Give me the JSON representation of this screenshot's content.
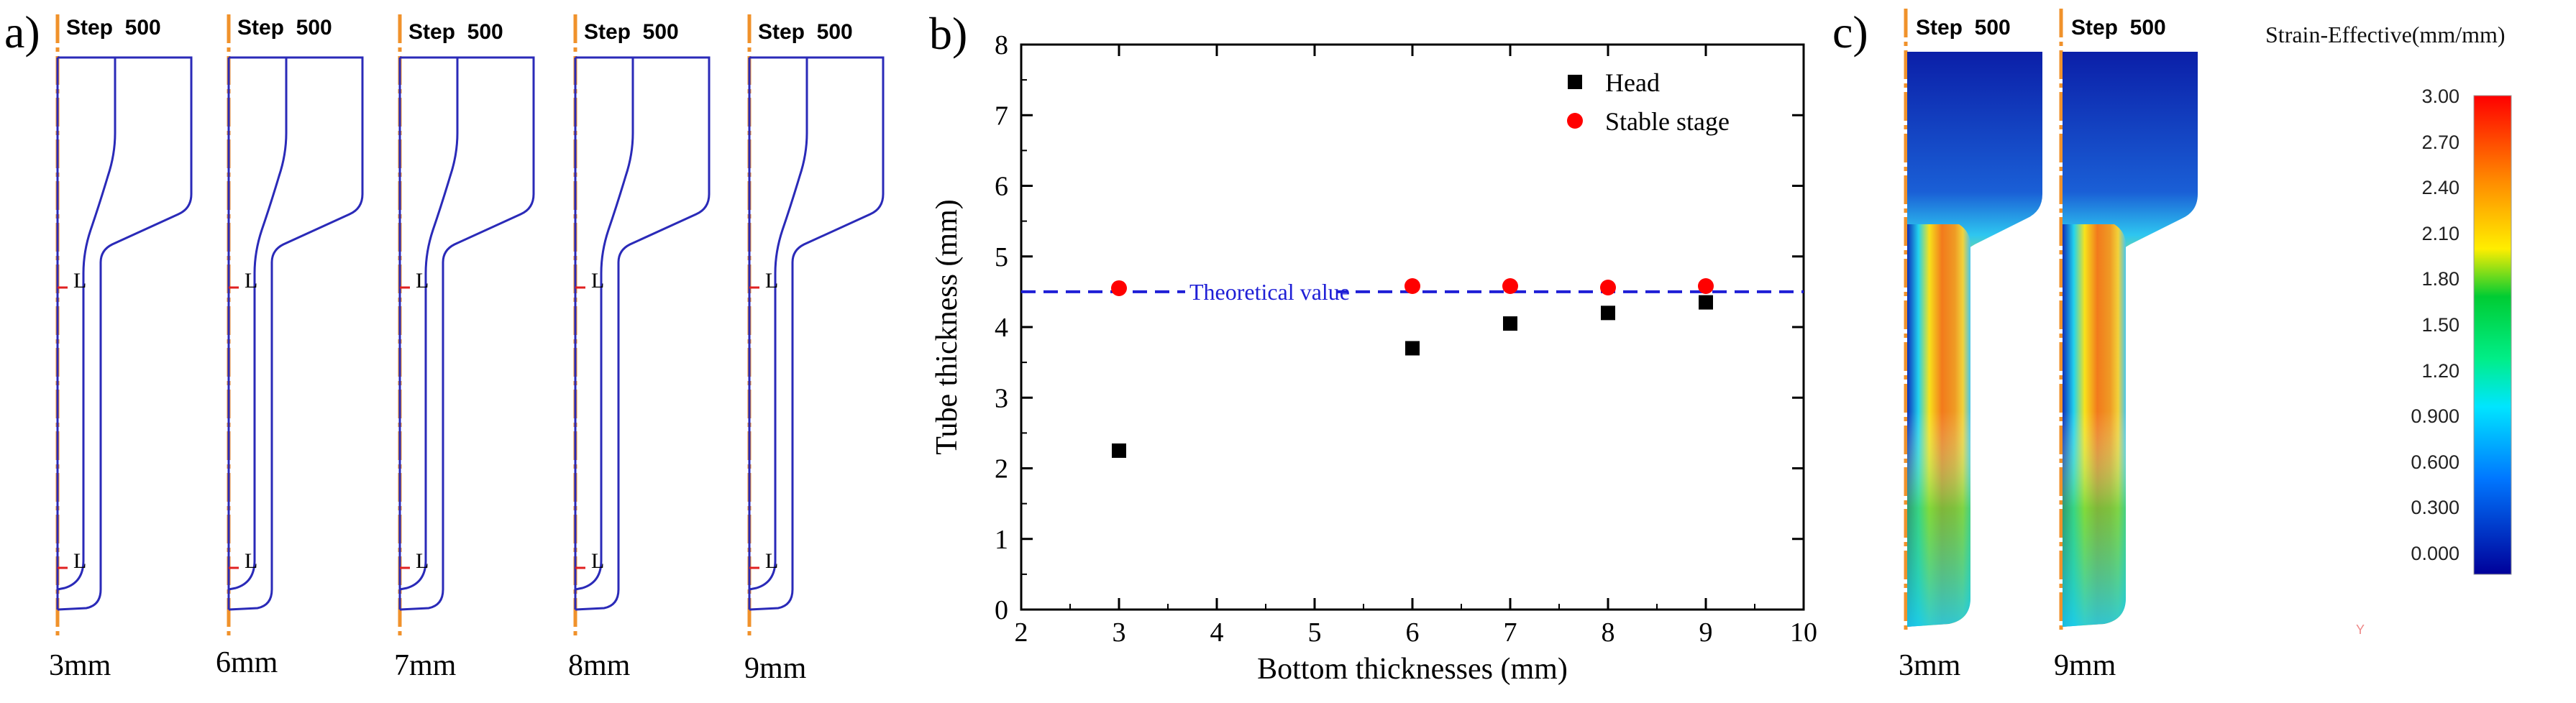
{
  "panel_a": {
    "label": "a)",
    "step_text": "Step  500",
    "shapes": [
      {
        "label": "3mm"
      },
      {
        "label": "6mm"
      },
      {
        "label": "7mm"
      },
      {
        "label": "8mm"
      },
      {
        "label": "9mm"
      }
    ]
  },
  "panel_b": {
    "label": "b)"
  },
  "panel_c": {
    "label": "c)",
    "step_text": "Step  500",
    "shapes": [
      {
        "label": "3mm"
      },
      {
        "label": "9mm"
      }
    ],
    "colorbar": {
      "title": "Strain-Effective(mm/mm)",
      "ticks": [
        "3.00",
        "2.70",
        "2.40",
        "2.10",
        "1.80",
        "1.50",
        "1.20",
        "0.900",
        "0.600",
        "0.300",
        "0.000"
      ],
      "axis_glyph": "Y"
    }
  },
  "chart_data": {
    "type": "scatter",
    "xlabel": "Bottom thicknesses (mm)",
    "ylabel": "Tube thickness (mm)",
    "xlim": [
      2,
      10
    ],
    "ylim": [
      0,
      8
    ],
    "xticks": [
      "2",
      "3",
      "4",
      "5",
      "6",
      "7",
      "8",
      "9",
      "10"
    ],
    "yticks": [
      "0",
      "1",
      "2",
      "3",
      "4",
      "5",
      "6",
      "7",
      "8"
    ],
    "series": [
      {
        "name": "Head",
        "marker": "square",
        "color": "#000000",
        "x": [
          3,
          6,
          7,
          8,
          9
        ],
        "y": [
          2.25,
          3.7,
          4.05,
          4.2,
          4.35
        ]
      },
      {
        "name": "Stable stage",
        "marker": "circle",
        "color": "#ff0000",
        "x": [
          3,
          6,
          7,
          8,
          9
        ],
        "y": [
          4.55,
          4.58,
          4.58,
          4.56,
          4.58
        ]
      }
    ],
    "reference_line": {
      "label": "Theoretical value",
      "y": 4.5,
      "color": "#1f1fd6"
    },
    "legend_position": "top-right",
    "grid": false
  }
}
